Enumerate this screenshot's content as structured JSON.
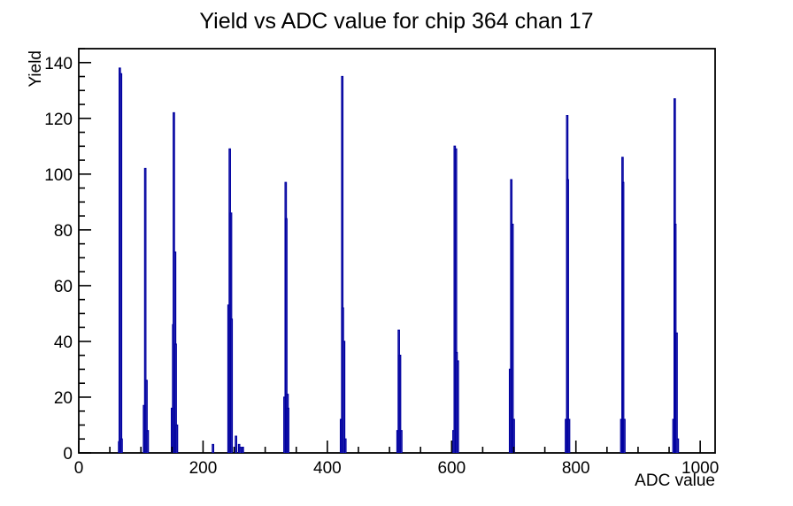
{
  "chart_data": {
    "type": "bar",
    "title": "Yield vs ADC value for chip 364 chan 17",
    "xlabel": "ADC value",
    "ylabel": "Yield",
    "xlim": [
      0,
      1024
    ],
    "ylim": [
      0,
      145
    ],
    "x_major_ticks": [
      0,
      200,
      400,
      600,
      800,
      1000
    ],
    "x_minor_step": 50,
    "y_major_ticks": [
      0,
      20,
      40,
      60,
      80,
      100,
      120,
      140
    ],
    "y_minor_step": 5,
    "grid": false,
    "legend": false,
    "bin_width_adc": 2,
    "line_color": "#0000a0",
    "axis_color": "#000000",
    "bars": [
      [
        64,
        4
      ],
      [
        65,
        138
      ],
      [
        67,
        136
      ],
      [
        68,
        5
      ],
      [
        104,
        17
      ],
      [
        106,
        102
      ],
      [
        108,
        26
      ],
      [
        110,
        8
      ],
      [
        149,
        16
      ],
      [
        151,
        46
      ],
      [
        152,
        122
      ],
      [
        154,
        72
      ],
      [
        155,
        39
      ],
      [
        157,
        10
      ],
      [
        215,
        3
      ],
      [
        240,
        53
      ],
      [
        242,
        109
      ],
      [
        244,
        86
      ],
      [
        245,
        48
      ],
      [
        252,
        6
      ],
      [
        257,
        3
      ],
      [
        259,
        2
      ],
      [
        263,
        2
      ],
      [
        330,
        20
      ],
      [
        332,
        97
      ],
      [
        333,
        84
      ],
      [
        335,
        21
      ],
      [
        336,
        16
      ],
      [
        421,
        12
      ],
      [
        423,
        135
      ],
      [
        424,
        52
      ],
      [
        426,
        40
      ],
      [
        428,
        5
      ],
      [
        512,
        8
      ],
      [
        514,
        44
      ],
      [
        516,
        35
      ],
      [
        518,
        8
      ],
      [
        602,
        8
      ],
      [
        604,
        110
      ],
      [
        606,
        109
      ],
      [
        607,
        36
      ],
      [
        609,
        33
      ],
      [
        693,
        30
      ],
      [
        695,
        98
      ],
      [
        697,
        82
      ],
      [
        699,
        12
      ],
      [
        783,
        12
      ],
      [
        785,
        121
      ],
      [
        786,
        98
      ],
      [
        788,
        12
      ],
      [
        872,
        12
      ],
      [
        874,
        106
      ],
      [
        875,
        97
      ],
      [
        877,
        12
      ],
      [
        956,
        12
      ],
      [
        958,
        127
      ],
      [
        959,
        82
      ],
      [
        961,
        43
      ],
      [
        963,
        5
      ]
    ]
  }
}
